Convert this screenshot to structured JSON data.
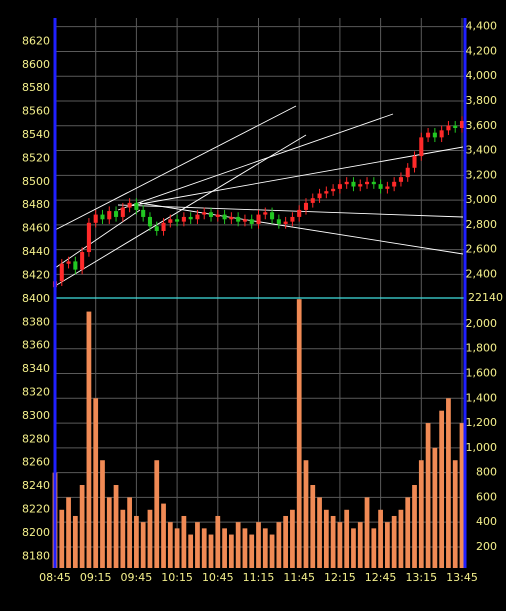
{
  "chart_data": {
    "type": "candlestick",
    "x": [
      "08:45",
      "08:50",
      "08:55",
      "09:00",
      "09:05",
      "09:10",
      "09:15",
      "09:20",
      "09:25",
      "09:30",
      "09:35",
      "09:40",
      "09:45",
      "09:50",
      "09:55",
      "10:00",
      "10:05",
      "10:10",
      "10:15",
      "10:20",
      "10:25",
      "10:30",
      "10:35",
      "10:40",
      "10:45",
      "10:50",
      "10:55",
      "11:00",
      "11:05",
      "11:10",
      "11:15",
      "11:20",
      "11:25",
      "11:30",
      "11:35",
      "11:40",
      "11:45",
      "11:50",
      "11:55",
      "12:00",
      "12:05",
      "12:10",
      "12:15",
      "12:20",
      "12:25",
      "12:30",
      "12:35",
      "12:40",
      "12:45",
      "12:50",
      "12:55",
      "13:00",
      "13:05",
      "13:10",
      "13:15",
      "13:20",
      "13:25",
      "13:30",
      "13:35",
      "13:40",
      "13:45"
    ],
    "open": [
      8410,
      8415,
      8430,
      8432,
      8425,
      8440,
      8465,
      8472,
      8468,
      8475,
      8470,
      8478,
      8482,
      8476,
      8470,
      8462,
      8458,
      8465,
      8468,
      8466,
      8470,
      8468,
      8472,
      8474,
      8470,
      8472,
      8468,
      8470,
      8466,
      8468,
      8464,
      8472,
      8474,
      8468,
      8464,
      8466,
      8470,
      8476,
      8482,
      8486,
      8490,
      8492,
      8494,
      8498,
      8500,
      8496,
      8498,
      8500,
      8498,
      8494,
      8496,
      8500,
      8504,
      8512,
      8522,
      8538,
      8542,
      8538,
      8544,
      8548,
      8546
    ],
    "high": [
      8419,
      8434,
      8436,
      8436,
      8444,
      8469,
      8476,
      8476,
      8479,
      8479,
      8482,
      8486,
      8486,
      8480,
      8474,
      8466,
      8469,
      8472,
      8472,
      8474,
      8474,
      8476,
      8478,
      8478,
      8476,
      8476,
      8474,
      8474,
      8472,
      8472,
      8476,
      8478,
      8478,
      8472,
      8470,
      8474,
      8480,
      8486,
      8490,
      8494,
      8496,
      8498,
      8502,
      8504,
      8504,
      8502,
      8504,
      8504,
      8502,
      8500,
      8504,
      8508,
      8516,
      8526,
      8542,
      8546,
      8546,
      8548,
      8552,
      8552,
      8556
    ],
    "low": [
      8406,
      8411,
      8426,
      8421,
      8421,
      8436,
      8461,
      8464,
      8464,
      8466,
      8466,
      8474,
      8472,
      8466,
      8458,
      8454,
      8454,
      8461,
      8462,
      8462,
      8464,
      8464,
      8468,
      8466,
      8466,
      8464,
      8464,
      8462,
      8462,
      8460,
      8460,
      8468,
      8464,
      8460,
      8460,
      8462,
      8466,
      8472,
      8478,
      8482,
      8486,
      8488,
      8490,
      8494,
      8492,
      8492,
      8494,
      8494,
      8490,
      8490,
      8492,
      8496,
      8500,
      8508,
      8518,
      8534,
      8534,
      8534,
      8540,
      8542,
      8542
    ],
    "close": [
      8415,
      8430,
      8432,
      8425,
      8440,
      8465,
      8472,
      8468,
      8475,
      8470,
      8478,
      8482,
      8476,
      8470,
      8462,
      8458,
      8465,
      8468,
      8466,
      8470,
      8468,
      8472,
      8474,
      8470,
      8472,
      8468,
      8470,
      8466,
      8468,
      8464,
      8472,
      8474,
      8468,
      8464,
      8466,
      8470,
      8476,
      8482,
      8486,
      8490,
      8492,
      8494,
      8498,
      8500,
      8496,
      8498,
      8500,
      8498,
      8494,
      8496,
      8500,
      8504,
      8512,
      8522,
      8538,
      8542,
      8538,
      8544,
      8548,
      8546,
      8552
    ],
    "volume": [
      800,
      500,
      600,
      450,
      700,
      2100,
      1400,
      900,
      600,
      700,
      500,
      600,
      450,
      400,
      500,
      900,
      550,
      400,
      350,
      450,
      300,
      400,
      350,
      300,
      450,
      350,
      300,
      400,
      350,
      300,
      400,
      350,
      300,
      400,
      450,
      500,
      2200,
      900,
      700,
      600,
      500,
      450,
      400,
      500,
      350,
      400,
      600,
      350,
      500,
      400,
      450,
      500,
      600,
      700,
      900,
      1200,
      1000,
      1300,
      1400,
      900,
      1200
    ],
    "up_color": "#ff2a2a",
    "down_color": "#22c822",
    "volume_color": "#f08a55",
    "ylim": [
      8170,
      8640
    ],
    "yticks": [
      8180,
      8200,
      8220,
      8240,
      8260,
      8280,
      8300,
      8320,
      8340,
      8360,
      8380,
      8400,
      8420,
      8440,
      8460,
      8480,
      8500,
      8520,
      8540,
      8560,
      8580,
      8600,
      8620
    ],
    "y2lim": [
      30,
      4470
    ],
    "y2ticks": [
      200,
      400,
      600,
      800,
      {
        "value": 1000,
        "label": "1,000"
      },
      {
        "value": 1200,
        "label": "1,200"
      },
      {
        "value": 1400,
        "label": "1,400"
      },
      {
        "value": 1600,
        "label": "1,600"
      },
      {
        "value": 1800,
        "label": "1,800"
      },
      {
        "value": 2000,
        "label": "2,000"
      },
      {
        "value": 2400,
        "label": "2,400"
      },
      {
        "value": 2600,
        "label": "2,600"
      },
      {
        "value": 2800,
        "label": "2,800"
      },
      {
        "value": 3000,
        "label": "3,000"
      },
      {
        "value": 3200,
        "label": "3,200"
      },
      {
        "value": 3400,
        "label": "3,400"
      },
      {
        "value": 3600,
        "label": "3,600"
      },
      {
        "value": 3800,
        "label": "3,800"
      },
      {
        "value": 4000,
        "label": "4,000"
      },
      {
        "value": 4200,
        "label": "4,200"
      },
      {
        "value": 4400,
        "label": "4,400"
      }
    ],
    "xticks": [
      "08:45",
      "09:15",
      "09:45",
      "10:15",
      "10:45",
      "11:15",
      "11:45",
      "12:15",
      "12:45",
      "13:15",
      "13:45"
    ],
    "divider_label": "22140",
    "grid": true
  }
}
